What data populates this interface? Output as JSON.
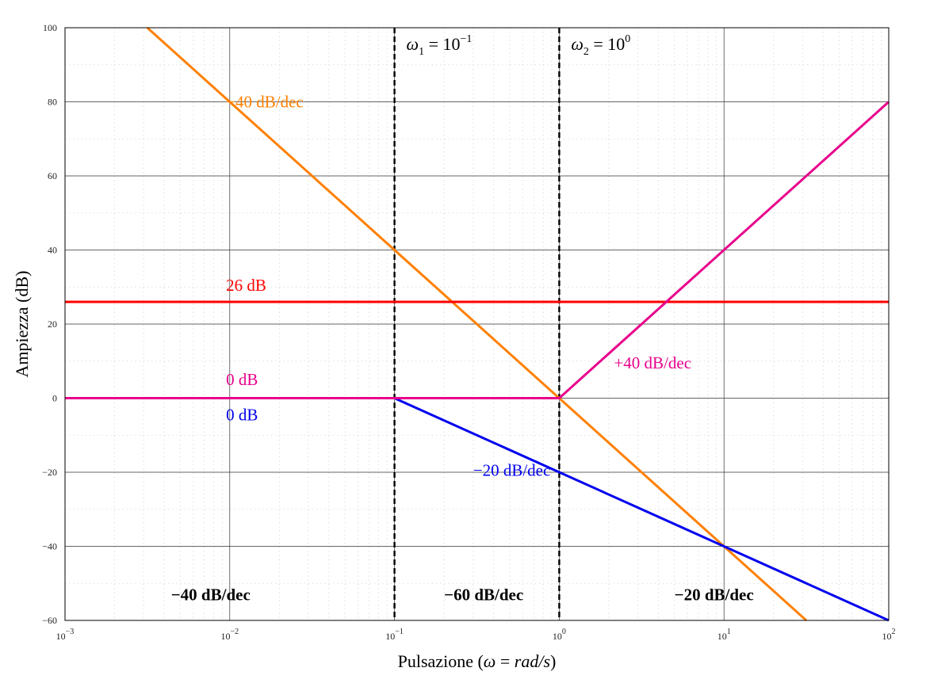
{
  "chart_data": {
    "type": "line",
    "xscale": "log",
    "xlim": [
      0.001,
      100
    ],
    "ylim": [
      -60,
      100
    ],
    "xlabel_prefix": "Pulsazione (",
    "xlabel_omega": "ω",
    "xlabel_eq": " = ",
    "xlabel_unit": "rad/s",
    "xlabel_suffix": ")",
    "ylabel": "Ampiezza (dB)",
    "grid": true,
    "minor_grid": true,
    "x_ticks": [
      {
        "value": 0.001,
        "base": "10",
        "exp": "−3"
      },
      {
        "value": 0.01,
        "base": "10",
        "exp": "−2"
      },
      {
        "value": 0.1,
        "base": "10",
        "exp": "−1"
      },
      {
        "value": 1,
        "base": "10",
        "exp": "0"
      },
      {
        "value": 10,
        "base": "10",
        "exp": "1"
      },
      {
        "value": 100,
        "base": "10",
        "exp": "2"
      }
    ],
    "y_ticks": [
      {
        "value": 100,
        "label": "100"
      },
      {
        "value": 80,
        "label": "80"
      },
      {
        "value": 60,
        "label": "60"
      },
      {
        "value": 40,
        "label": "40"
      },
      {
        "value": 20,
        "label": "20"
      },
      {
        "value": 0,
        "label": "0"
      },
      {
        "value": -20,
        "label": "−20"
      },
      {
        "value": -40,
        "label": "−40"
      },
      {
        "value": -60,
        "label": "−60"
      }
    ],
    "series": [
      {
        "color": "#ff8000",
        "x": [
          0.00316,
          31.6
        ],
        "y": [
          100,
          -60
        ]
      },
      {
        "color": "#ff0000",
        "x": [
          0.001,
          100
        ],
        "y": [
          26,
          26
        ]
      },
      {
        "color": "#0000ee",
        "x": [
          0.001,
          0.1,
          100
        ],
        "y": [
          0,
          0,
          -60
        ]
      },
      {
        "color": "#e8008c",
        "x": [
          0.001,
          1,
          100
        ],
        "y": [
          0,
          0,
          80
        ]
      }
    ],
    "vlines": [
      {
        "x": 0.1,
        "name": "omega1-line"
      },
      {
        "x": 1,
        "name": "omega2-line"
      }
    ],
    "annotations": [
      {
        "name": "label-minus40-orange",
        "text": "−40 dB/dec",
        "x": 0.0095,
        "y": 78.5,
        "color": "#ff8000",
        "style": "normal"
      },
      {
        "name": "label-26db",
        "text": "26 dB",
        "x": 0.0095,
        "y": 29,
        "color": "#ff0000",
        "style": "normal"
      },
      {
        "name": "label-0db-pink",
        "text": "0 dB",
        "x": 0.0095,
        "y": 3.5,
        "color": "#e8008c",
        "style": "normal"
      },
      {
        "name": "label-0db-blue",
        "text": "0 dB",
        "x": 0.0095,
        "y": -6,
        "color": "#0000ee",
        "style": "normal"
      },
      {
        "name": "label-minus20-blue",
        "text": "−20 dB/dec",
        "x": 0.3,
        "y": -21,
        "color": "#0000ee",
        "style": "normal"
      },
      {
        "name": "label-plus40-pink",
        "text": "+40 dB/dec",
        "x": 2.15,
        "y": 8,
        "color": "#e8008c",
        "style": "normal"
      },
      {
        "name": "region-label-minus40",
        "text": "−40 dB/dec",
        "x": 0.0044,
        "y": -54.5,
        "color": "#000000",
        "style": "bold"
      },
      {
        "name": "region-label-minus60",
        "text": "−60 dB/dec",
        "x": 0.2,
        "y": -54.5,
        "color": "#000000",
        "style": "bold"
      },
      {
        "name": "region-label-minus20",
        "text": "−20 dB/dec",
        "x": 5.0,
        "y": -54.5,
        "color": "#000000",
        "style": "bold"
      }
    ],
    "omega_labels": [
      {
        "name": "omega1-label",
        "sym": "ω",
        "sub": "1",
        "eq": " = 10",
        "sup": "−1",
        "x": 0.118,
        "y": 94
      },
      {
        "name": "omega2-label",
        "sym": "ω",
        "sub": "2",
        "eq": " = 10",
        "sup": "0",
        "x": 1.18,
        "y": 94
      }
    ]
  }
}
